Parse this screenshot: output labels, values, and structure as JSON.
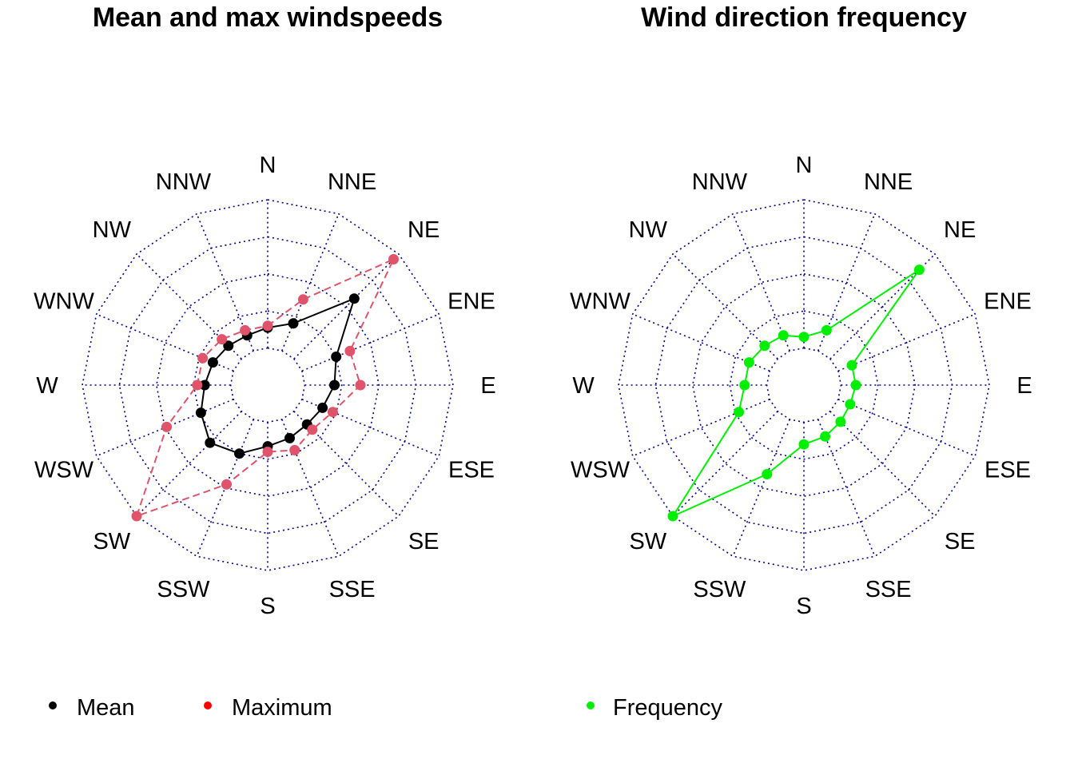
{
  "directions": [
    "N",
    "NNE",
    "NE",
    "ENE",
    "E",
    "ESE",
    "SE",
    "SSE",
    "S",
    "SSW",
    "SW",
    "WSW",
    "W",
    "WNW",
    "NW",
    "NNW"
  ],
  "colors": {
    "grid": "#00008B",
    "mean": "#000000",
    "maximum": "#DF536B",
    "maximum_legend": "#FF0000",
    "frequency": "#00EE00"
  },
  "chart_data": [
    {
      "type": "radar",
      "title": "Mean and max windspeeds",
      "directions": [
        "N",
        "NNE",
        "NE",
        "ENE",
        "E",
        "ESE",
        "SE",
        "SSE",
        "S",
        "SSW",
        "SW",
        "WSW",
        "W",
        "WNW",
        "NW",
        "NNW"
      ],
      "radial_range": [
        0,
        5
      ],
      "grid_rings": [
        1,
        2,
        3,
        4,
        5
      ],
      "grid": true,
      "legend_position": "bottom",
      "series": [
        {
          "name": "Mean",
          "style": "solid",
          "values": [
            1.55,
            1.8,
            3.3,
            2.0,
            1.8,
            1.6,
            1.5,
            1.55,
            1.65,
            2.0,
            2.2,
            1.95,
            1.7,
            1.6,
            1.5,
            1.45
          ]
        },
        {
          "name": "Maximum",
          "style": "dashed",
          "values": [
            1.6,
            2.5,
            4.8,
            2.4,
            2.5,
            1.9,
            1.7,
            1.9,
            1.8,
            2.9,
            5.0,
            2.95,
            1.9,
            1.9,
            1.75,
            1.6
          ]
        }
      ]
    },
    {
      "type": "radar",
      "title": "Wind direction frequency",
      "directions": [
        "N",
        "NNE",
        "NE",
        "ENE",
        "E",
        "ESE",
        "SE",
        "SSE",
        "S",
        "SSW",
        "SW",
        "WSW",
        "W",
        "WNW",
        "NW",
        "NNW"
      ],
      "radial_range": [
        0,
        5
      ],
      "grid_rings": [
        1,
        2,
        3,
        4,
        5
      ],
      "grid": true,
      "legend_position": "bottom",
      "series": [
        {
          "name": "Frequency",
          "style": "solid",
          "values": [
            1.3,
            1.6,
            4.4,
            1.4,
            1.4,
            1.35,
            1.4,
            1.5,
            1.6,
            2.6,
            5.0,
            1.9,
            1.6,
            1.6,
            1.5,
            1.45
          ]
        }
      ]
    }
  ],
  "legend_left": [
    {
      "label": "Mean",
      "color_key": "mean"
    },
    {
      "label": "Maximum",
      "color_key": "maximum_legend"
    }
  ],
  "legend_right": [
    {
      "label": "Frequency",
      "color_key": "frequency"
    }
  ]
}
